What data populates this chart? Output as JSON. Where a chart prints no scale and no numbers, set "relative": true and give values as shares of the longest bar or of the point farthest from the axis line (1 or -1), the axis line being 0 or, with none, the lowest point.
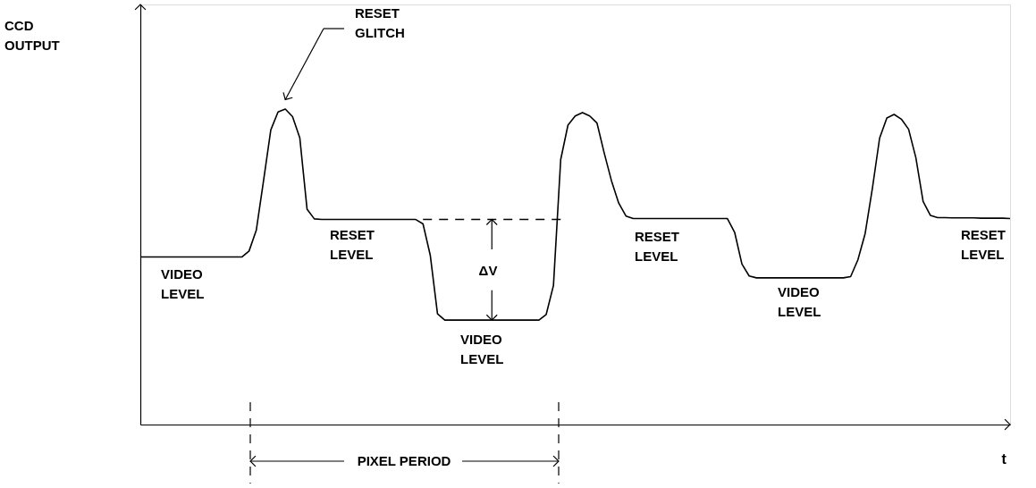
{
  "chart_data": {
    "type": "line",
    "relative": true,
    "xlabel": "t",
    "categories": [
      null,
      null,
      null,
      null,
      null,
      null,
      null,
      null,
      null,
      null,
      null,
      null,
      null,
      null,
      null,
      null,
      null,
      null,
      null,
      null,
      null,
      null,
      null,
      null,
      null,
      null,
      null,
      null,
      null,
      null,
      null,
      null,
      null,
      null,
      null,
      null,
      null,
      null,
      null,
      null,
      null,
      null,
      null,
      null,
      null,
      null,
      null,
      null,
      null,
      null,
      null,
      null,
      null,
      null,
      null,
      null,
      null,
      null,
      null,
      null,
      null,
      null,
      null,
      null,
      null,
      null,
      null,
      null,
      null,
      null,
      null,
      null,
      null,
      null,
      null,
      null,
      null,
      null,
      null,
      null,
      null,
      null,
      null,
      null,
      null,
      null,
      null,
      null,
      null,
      null,
      null,
      null,
      null,
      null,
      null,
      null,
      null,
      null,
      null,
      null,
      null,
      null,
      null,
      null,
      null,
      null,
      null,
      null,
      null,
      null,
      null,
      null,
      null,
      null,
      null,
      null,
      null,
      null,
      null,
      null,
      null
    ],
    "series": [
      {
        "color": "#000000",
        "line_style": "solid",
        "values": [
          0.531,
          0.531,
          0.531,
          0.531,
          0.531,
          0.531,
          0.531,
          0.531,
          0.531,
          0.531,
          0.531,
          0.531,
          0.531,
          0.531,
          0.531,
          0.55,
          0.616,
          0.773,
          0.934,
          0.991,
          1.0,
          0.976,
          0.909,
          0.683,
          0.652,
          0.65,
          0.65,
          0.65,
          0.65,
          0.65,
          0.65,
          0.65,
          0.65,
          0.65,
          0.65,
          0.65,
          0.65,
          0.65,
          0.65,
          0.636,
          0.537,
          0.351,
          0.331,
          0.331,
          0.331,
          0.331,
          0.331,
          0.331,
          0.331,
          0.331,
          0.331,
          0.331,
          0.331,
          0.331,
          0.331,
          0.331,
          0.349,
          0.441,
          0.84,
          0.949,
          0.978,
          0.989,
          0.978,
          0.956,
          0.861,
          0.773,
          0.702,
          0.661,
          0.653,
          0.653,
          0.653,
          0.653,
          0.653,
          0.653,
          0.653,
          0.653,
          0.653,
          0.653,
          0.653,
          0.653,
          0.653,
          0.653,
          0.609,
          0.509,
          0.471,
          0.465,
          0.465,
          0.465,
          0.465,
          0.465,
          0.465,
          0.465,
          0.465,
          0.465,
          0.465,
          0.465,
          0.465,
          0.465,
          0.469,
          0.522,
          0.605,
          0.748,
          0.908,
          0.972,
          0.983,
          0.968,
          0.936,
          0.846,
          0.707,
          0.663,
          0.656,
          0.656,
          0.655,
          0.655,
          0.655,
          0.655,
          0.654,
          0.654,
          0.654,
          0.654,
          0.653
        ]
      },
      {
        "color": "#000000",
        "line_style": "dashed",
        "values": [
          null,
          null,
          null,
          null,
          null,
          null,
          null,
          null,
          null,
          null,
          null,
          null,
          null,
          null,
          null,
          null,
          null,
          null,
          null,
          null,
          null,
          null,
          null,
          null,
          null,
          null,
          null,
          null,
          null,
          null,
          null,
          null,
          null,
          null,
          null,
          null,
          null,
          null,
          null,
          0.65,
          0.65,
          0.65,
          0.65,
          0.65,
          0.65,
          0.65,
          0.65,
          0.65,
          0.65,
          0.65,
          0.65,
          0.65,
          0.65,
          0.65,
          0.65,
          0.65,
          0.65,
          0.65,
          0.65,
          null,
          null,
          null,
          null,
          null,
          null,
          null,
          null,
          null,
          null,
          null,
          null,
          null,
          null,
          null,
          null,
          null,
          null,
          null,
          null,
          null,
          null,
          null,
          null,
          null,
          null,
          null,
          null,
          null,
          null,
          null,
          null,
          null,
          null,
          null,
          null,
          null,
          null,
          null,
          null,
          null,
          null,
          null,
          null,
          null,
          null,
          null,
          null,
          null,
          null,
          null,
          null,
          null,
          null,
          null,
          null,
          null,
          null,
          null,
          null,
          null,
          null
        ]
      }
    ],
    "annotations": [
      "RESET\nGLITCH",
      "CCD\nOUTPUT",
      "VIDEO\nLEVEL",
      "RESET\nLEVEL",
      "ΔV",
      "VIDEO\nLEVEL",
      "RESET\nLEVEL",
      "VIDEO\nLEVEL",
      "RESET\nLEVEL",
      "PIXEL PERIOD"
    ]
  }
}
